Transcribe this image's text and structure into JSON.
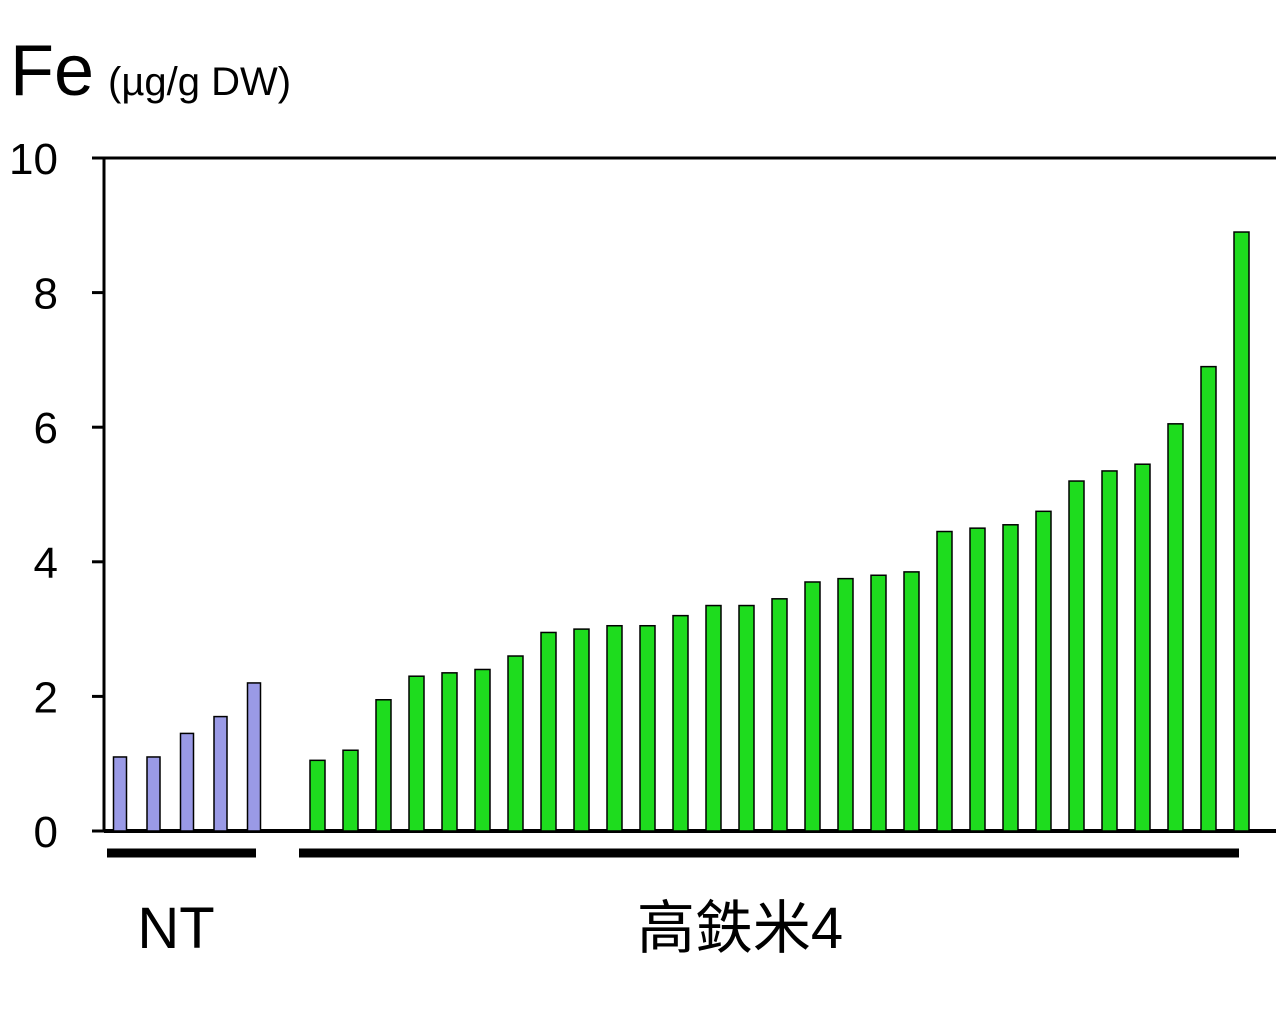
{
  "chart_data": {
    "type": "bar",
    "title": "Fe",
    "unit": "(µg/g DW)",
    "ylim": [
      0,
      10
    ],
    "yticks": [
      "0",
      "2",
      "4",
      "6",
      "8",
      "10"
    ],
    "grid": false,
    "legend": "none",
    "groups": [
      {
        "name": "NT",
        "color": "#9a9ae6",
        "values": [
          1.1,
          1.1,
          1.45,
          1.7,
          2.2
        ]
      },
      {
        "name": "高鉄米4",
        "color": "#1edc1e",
        "values": [
          1.05,
          1.2,
          1.95,
          2.3,
          2.35,
          2.4,
          2.6,
          2.95,
          3.0,
          3.05,
          3.05,
          3.2,
          3.35,
          3.35,
          3.45,
          3.7,
          3.75,
          3.8,
          3.85,
          4.45,
          4.5,
          4.55,
          4.75,
          5.2,
          5.35,
          5.45,
          6.05,
          6.9,
          8.9
        ]
      }
    ]
  }
}
